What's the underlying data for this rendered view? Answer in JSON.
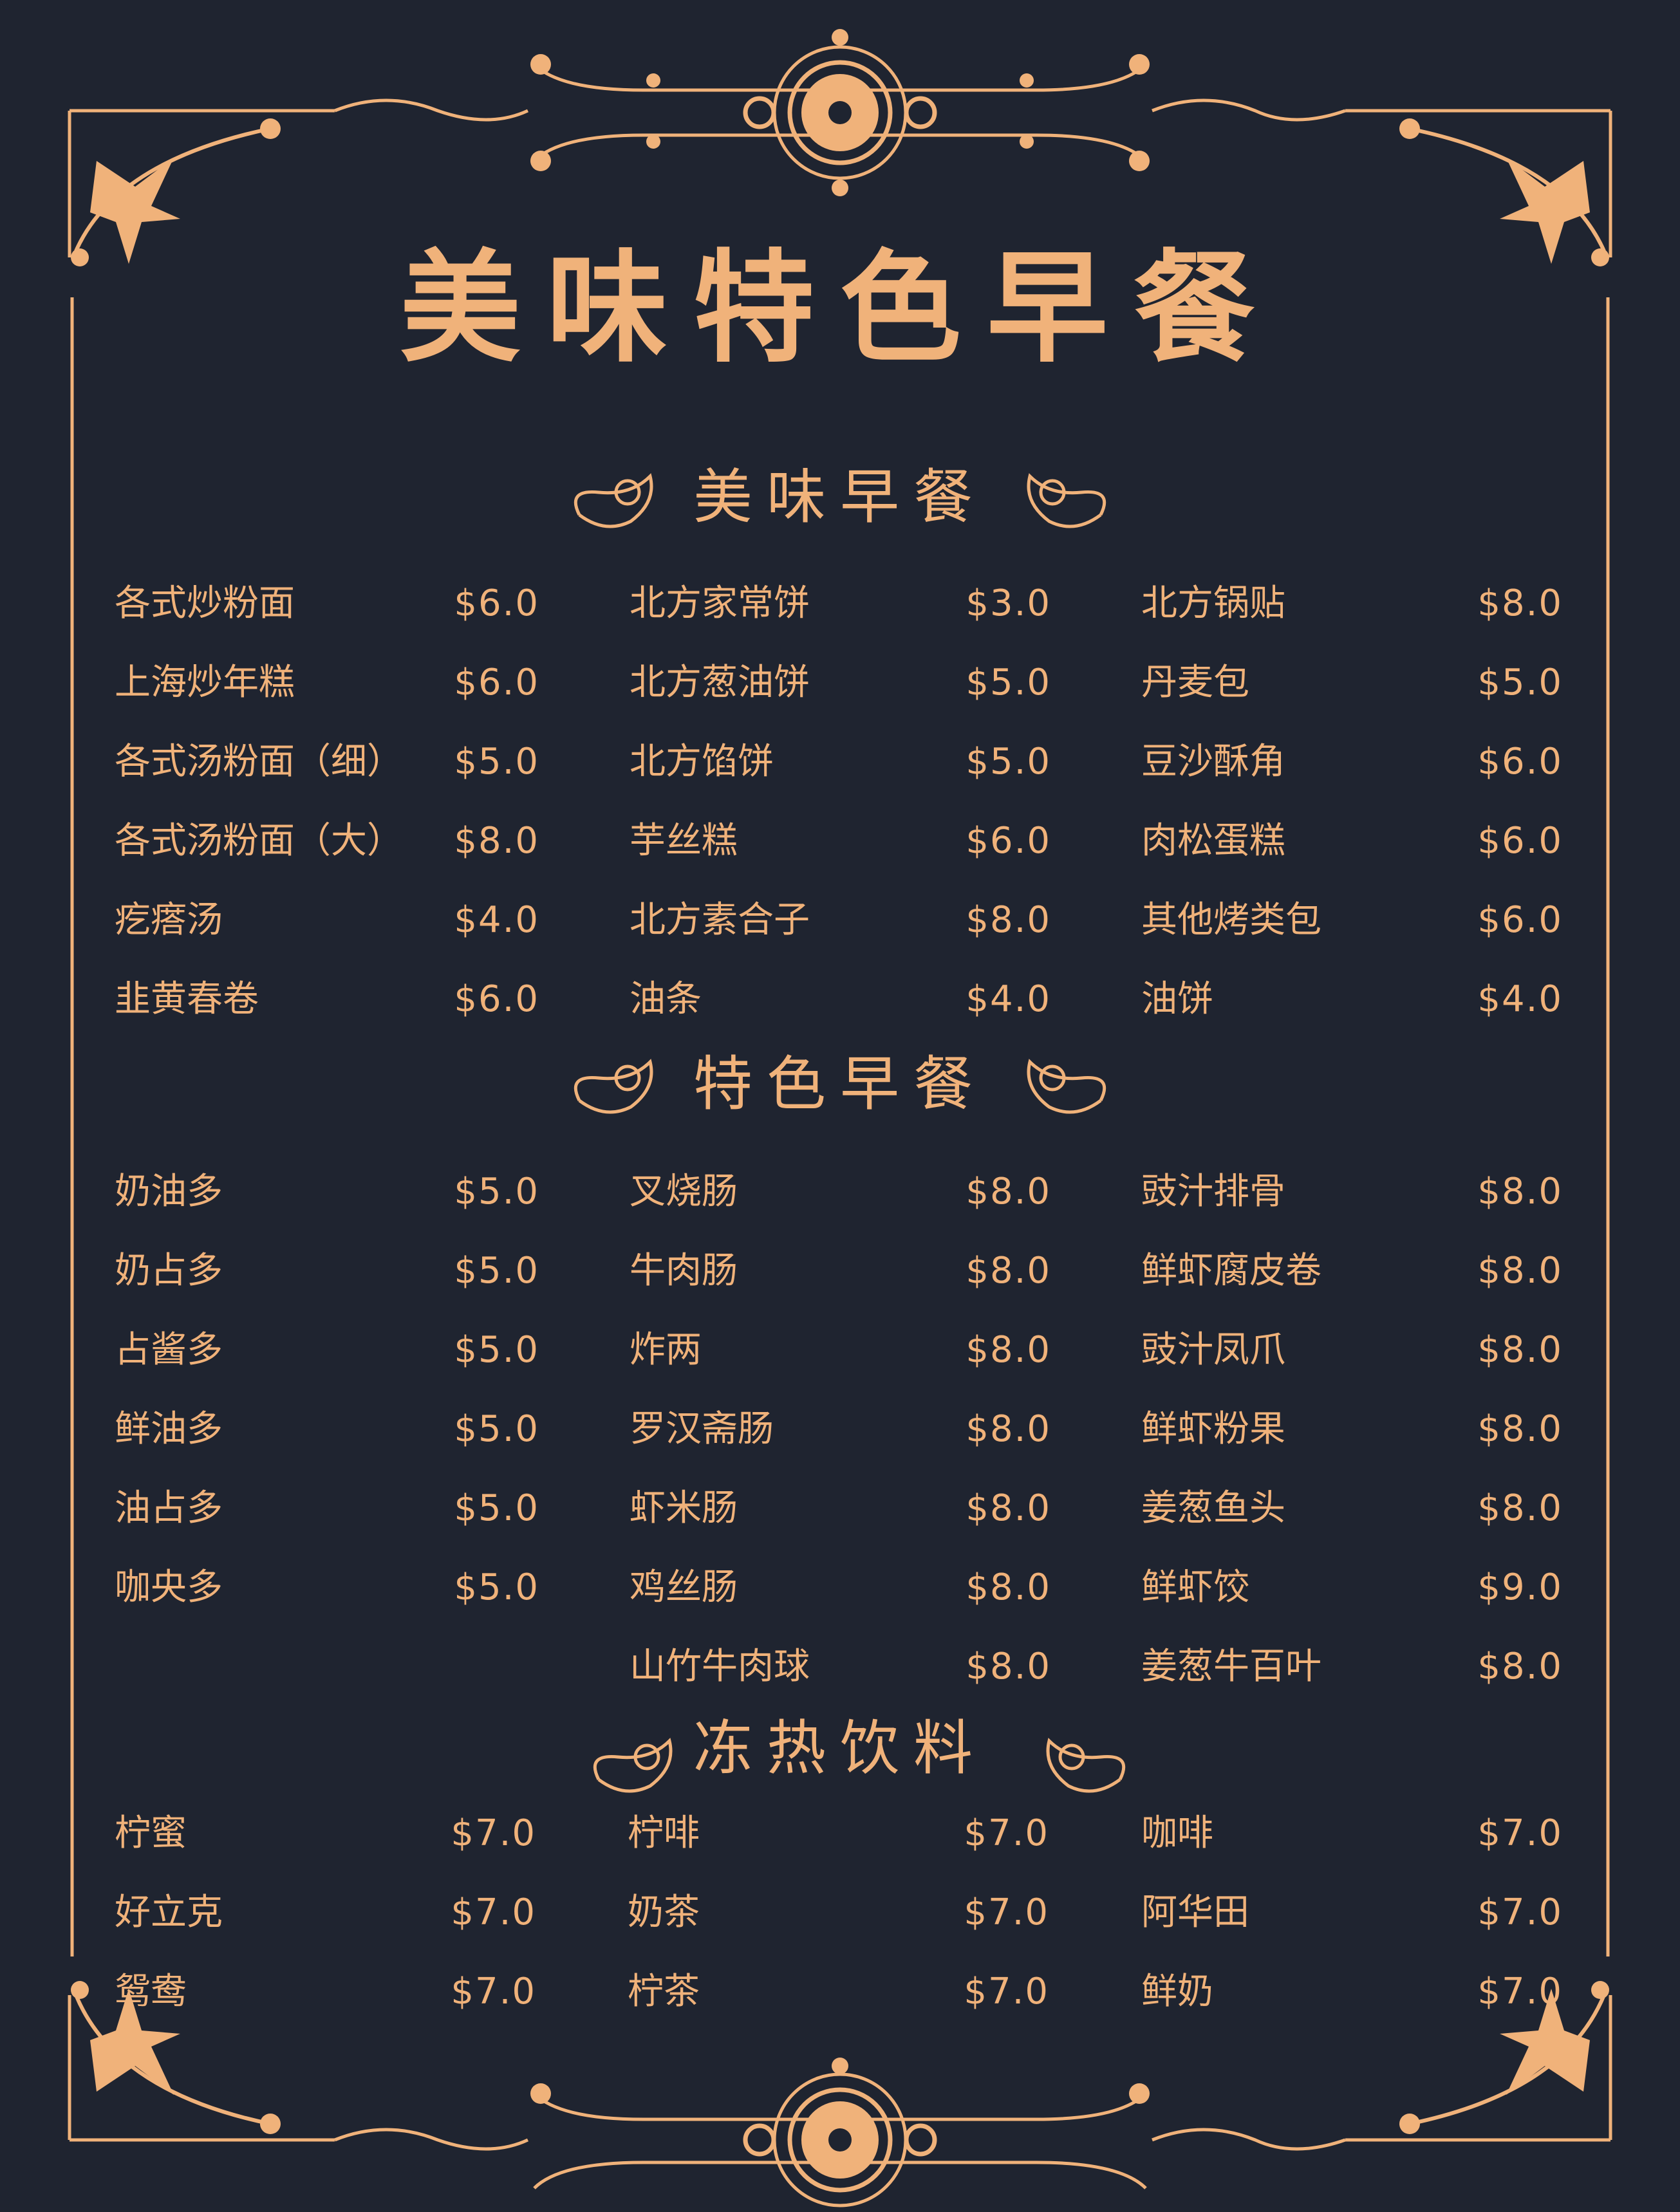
{
  "title": "美味特色早餐",
  "colors": {
    "background": "#1f2430",
    "accent": "#f0b27a"
  },
  "sections": [
    {
      "heading": "美味早餐",
      "columns": [
        [
          {
            "name": "各式炒粉面",
            "price": "$6.0"
          },
          {
            "name": "上海炒年糕",
            "price": "$6.0"
          },
          {
            "name": "各式汤粉面（细）",
            "price": "$5.0"
          },
          {
            "name": "各式汤粉面（大）",
            "price": "$8.0"
          },
          {
            "name": "疙瘩汤",
            "price": "$4.0"
          },
          {
            "name": "韭黄春卷",
            "price": "$6.0"
          }
        ],
        [
          {
            "name": "北方家常饼",
            "price": "$3.0"
          },
          {
            "name": "北方葱油饼",
            "price": "$5.0"
          },
          {
            "name": "北方馅饼",
            "price": "$5.0"
          },
          {
            "name": "芋丝糕",
            "price": "$6.0"
          },
          {
            "name": "北方素合子",
            "price": "$8.0"
          },
          {
            "name": "油条",
            "price": "$4.0"
          }
        ],
        [
          {
            "name": "北方锅贴",
            "price": "$8.0"
          },
          {
            "name": "丹麦包",
            "price": "$5.0"
          },
          {
            "name": "豆沙酥角",
            "price": "$6.0"
          },
          {
            "name": "肉松蛋糕",
            "price": "$6.0"
          },
          {
            "name": "其他烤类包",
            "price": "$6.0"
          },
          {
            "name": "油饼",
            "price": "$4.0"
          }
        ]
      ]
    },
    {
      "heading": "特色早餐",
      "columns": [
        [
          {
            "name": "奶油多",
            "price": "$5.0"
          },
          {
            "name": "奶占多",
            "price": "$5.0"
          },
          {
            "name": "占酱多",
            "price": "$5.0"
          },
          {
            "name": "鲜油多",
            "price": "$5.0"
          },
          {
            "name": "油占多",
            "price": "$5.0"
          },
          {
            "name": "咖央多",
            "price": "$5.0"
          }
        ],
        [
          {
            "name": "叉烧肠",
            "price": "$8.0"
          },
          {
            "name": "牛肉肠",
            "price": "$8.0"
          },
          {
            "name": "炸两",
            "price": "$8.0"
          },
          {
            "name": "罗汉斋肠",
            "price": "$8.0"
          },
          {
            "name": "虾米肠",
            "price": "$8.0"
          },
          {
            "name": "鸡丝肠",
            "price": "$8.0"
          },
          {
            "name": "山竹牛肉球",
            "price": "$8.0"
          }
        ],
        [
          {
            "name": "豉汁排骨",
            "price": "$8.0"
          },
          {
            "name": "鲜虾腐皮卷",
            "price": "$8.0"
          },
          {
            "name": "豉汁凤爪",
            "price": "$8.0"
          },
          {
            "name": "鲜虾粉果",
            "price": "$8.0"
          },
          {
            "name": "姜葱鱼头",
            "price": "$8.0"
          },
          {
            "name": "鲜虾饺",
            "price": "$9.0"
          },
          {
            "name": "姜葱牛百叶",
            "price": "$8.0"
          }
        ]
      ]
    },
    {
      "heading": "冻热饮料",
      "columns": [
        [
          {
            "name": "柠蜜",
            "price": "$7.0"
          },
          {
            "name": "好立克",
            "price": "$7.0"
          },
          {
            "name": "鸳鸯",
            "price": "$7.0"
          }
        ],
        [
          {
            "name": "柠啡",
            "price": "$7.0"
          },
          {
            "name": "奶茶",
            "price": "$7.0"
          },
          {
            "name": "柠茶",
            "price": "$7.0"
          }
        ],
        [
          {
            "name": "咖啡",
            "price": "$7.0"
          },
          {
            "name": "阿华田",
            "price": "$7.0"
          },
          {
            "name": "鲜奶",
            "price": "$7.0"
          }
        ]
      ]
    }
  ]
}
